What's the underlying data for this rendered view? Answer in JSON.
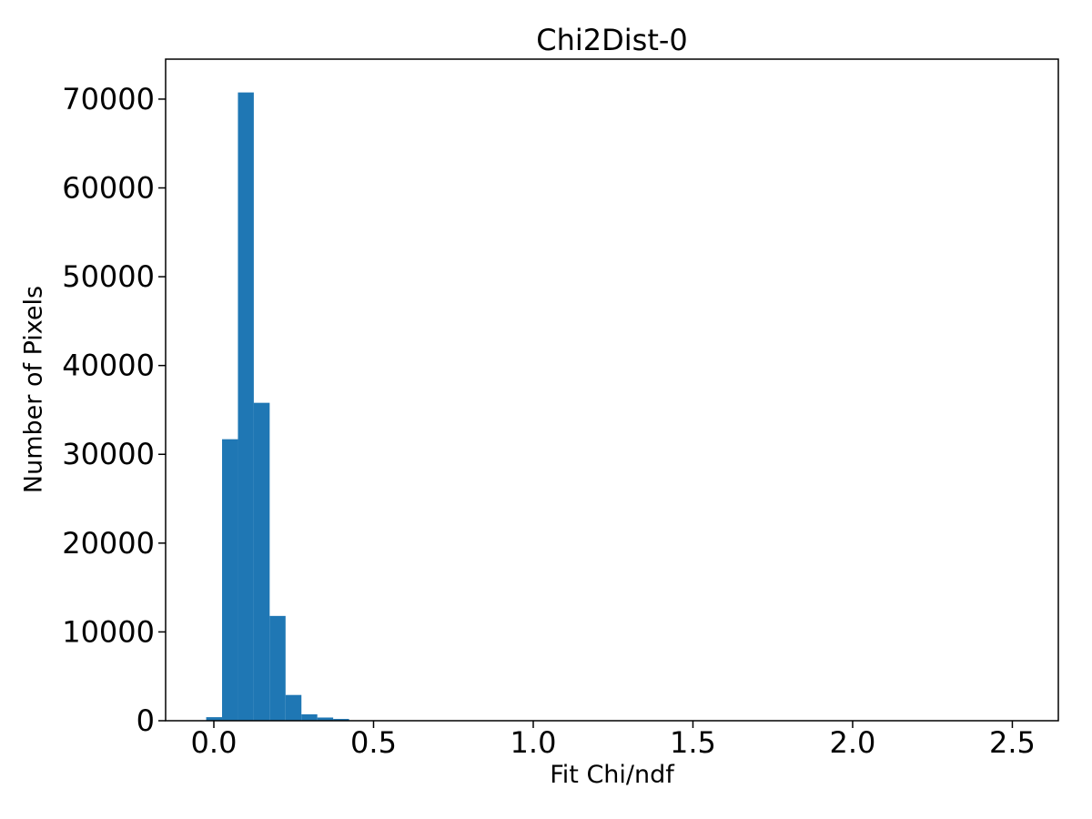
{
  "chart_data": {
    "type": "bar",
    "subtype": "histogram",
    "title": "Chi2Dist-0",
    "xlabel": "Fit Chi/ndf",
    "ylabel": "Number of Pixels",
    "bar_color": "#1f77b4",
    "background_color": "#ffffff",
    "axis_color": "#000000",
    "grid": false,
    "legend": null,
    "xlim": [
      -0.151,
      2.644
    ],
    "ylim": [
      0,
      74500
    ],
    "x_tick_values": [
      0.0,
      0.5,
      1.0,
      1.5,
      2.0,
      2.5
    ],
    "x_tick_labels": [
      "0.0",
      "0.5",
      "1.0",
      "1.5",
      "2.0",
      "2.5"
    ],
    "y_tick_values": [
      0,
      10000,
      20000,
      30000,
      40000,
      50000,
      60000,
      70000
    ],
    "y_tick_labels": [
      "0",
      "10000",
      "20000",
      "30000",
      "40000",
      "50000",
      "60000",
      "70000"
    ],
    "bins": [
      {
        "x0": -0.024,
        "x1": 0.0257,
        "count": 400
      },
      {
        "x0": 0.0257,
        "x1": 0.0754,
        "count": 31700
      },
      {
        "x0": 0.0754,
        "x1": 0.1251,
        "count": 70750
      },
      {
        "x0": 0.1251,
        "x1": 0.1748,
        "count": 35800
      },
      {
        "x0": 0.1748,
        "x1": 0.2245,
        "count": 11800
      },
      {
        "x0": 0.2245,
        "x1": 0.2742,
        "count": 2900
      },
      {
        "x0": 0.2742,
        "x1": 0.3239,
        "count": 720
      },
      {
        "x0": 0.3239,
        "x1": 0.3736,
        "count": 360
      },
      {
        "x0": 0.3736,
        "x1": 0.4233,
        "count": 200
      }
    ]
  }
}
